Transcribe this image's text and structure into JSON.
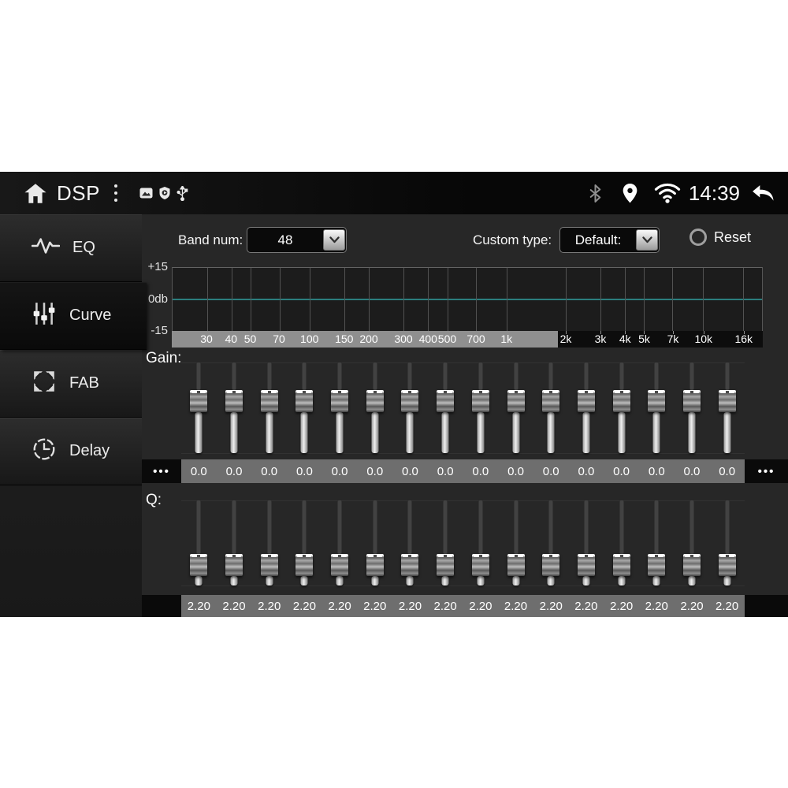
{
  "status_bar": {
    "title": "DSP",
    "time": "14:39",
    "left_icons": [
      "home-icon",
      "overflow-menu-icon",
      "gallery-icon",
      "shield-icon",
      "usb-icon"
    ],
    "right_icons": [
      "bluetooth-icon",
      "location-icon",
      "wifi-icon",
      "back-icon"
    ]
  },
  "sidebar": {
    "items": [
      {
        "label": "EQ",
        "icon": "waveform-icon",
        "active": false
      },
      {
        "label": "Curve",
        "icon": "sliders-icon",
        "active": true
      },
      {
        "label": "FAB",
        "icon": "fab-arrows-icon",
        "active": false
      },
      {
        "label": "Delay",
        "icon": "clock-icon",
        "active": false
      }
    ]
  },
  "controls": {
    "band_num_label": "Band num:",
    "band_num_value": "48",
    "custom_type_label": "Custom type:",
    "custom_type_value": "Default:",
    "reset_label": "Reset"
  },
  "graph": {
    "type": "line",
    "y_tick_labels": [
      "+15",
      "0db",
      "-15"
    ],
    "y_range_db": [
      -15,
      15
    ],
    "freq_tick_labels": [
      "30",
      "40",
      "50",
      "70",
      "100",
      "150",
      "200",
      "300",
      "400",
      "500",
      "700",
      "1k",
      "2k",
      "3k",
      "4k",
      "5k",
      "7k",
      "10k",
      "16k"
    ],
    "freq_range_hz": [
      20,
      20000
    ],
    "curve_db": 0,
    "zero_line_color": "#2b7e7e",
    "highlighted_band_end": "2k"
  },
  "gain": {
    "label": "Gain:",
    "dots": "•••",
    "range_db": [
      -15,
      15
    ],
    "values": [
      "0.0",
      "0.0",
      "0.0",
      "0.0",
      "0.0",
      "0.0",
      "0.0",
      "0.0",
      "0.0",
      "0.0",
      "0.0",
      "0.0",
      "0.0",
      "0.0",
      "0.0",
      "0.0"
    ]
  },
  "q": {
    "label": "Q:",
    "values": [
      "2.20",
      "2.20",
      "2.20",
      "2.20",
      "2.20",
      "2.20",
      "2.20",
      "2.20",
      "2.20",
      "2.20",
      "2.20",
      "2.20",
      "2.20",
      "2.20",
      "2.20",
      "2.20"
    ]
  }
}
